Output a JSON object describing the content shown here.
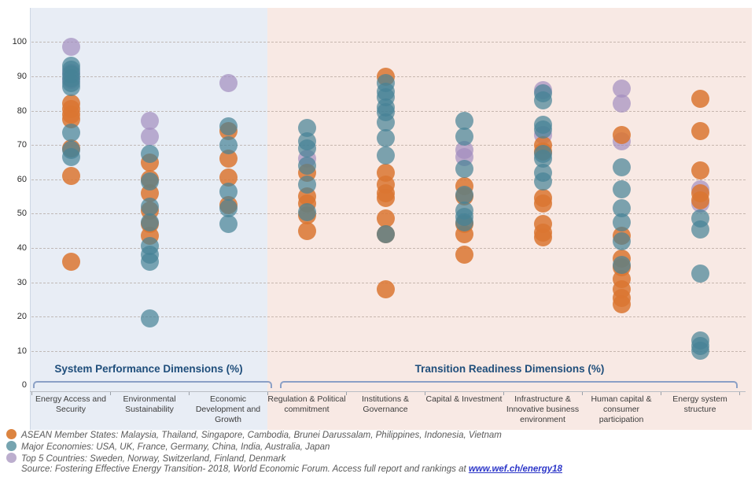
{
  "colors": {
    "panel_blue": "#E8EDF5",
    "panel_pink": "#F8E9E4",
    "region_title": "#1F4E7B",
    "link_blue": "#2B35C8"
  },
  "chart_data": {
    "type": "scatter",
    "title": "",
    "xlabel": "",
    "ylabel": "",
    "ylim": [
      0,
      100
    ],
    "yticks": [
      0,
      10,
      20,
      30,
      40,
      50,
      60,
      70,
      80,
      90,
      100
    ],
    "grid": "dashed horizontal",
    "legend_position": "bottom-left",
    "regions": [
      {
        "label": "System Performance Dimensions (%)",
        "category_span": [
          0,
          2
        ],
        "background": "#E8EDF5"
      },
      {
        "label": "Transition Readiness Dimensions (%)",
        "category_span": [
          3,
          8
        ],
        "background": "#F8E9E4"
      }
    ],
    "categories": [
      "Energy Access and Security",
      "Environmental Sustainability",
      "Economic Development and Growth",
      "Regulation & Political commitment",
      "Institutions & Governance",
      "Capital & Investment",
      "Infrastructure & Innovative business environment",
      "Human capital & consumer participation",
      "Energy system structure"
    ],
    "series": [
      {
        "id": "asean",
        "name": "ASEAN Member States",
        "color": "rgba(219,118,49,0.85)",
        "values_by_category": [
          [
            82,
            80.5,
            79,
            77.5,
            69,
            61,
            36
          ],
          [
            65,
            60,
            56,
            51,
            47,
            43.5
          ],
          [
            74,
            66,
            60.5,
            52.5
          ],
          [
            62,
            55,
            53,
            49.5,
            45
          ],
          [
            90,
            62,
            58.5,
            56,
            54.5,
            48.5,
            44,
            28
          ],
          [
            58,
            55,
            47,
            44,
            38
          ],
          [
            70,
            68,
            54.5,
            53,
            47,
            44.5,
            43
          ],
          [
            73,
            43.5,
            37,
            34.5,
            31,
            28,
            25.5,
            23.5
          ],
          [
            83.5,
            74,
            62.5,
            56,
            54
          ]
        ]
      },
      {
        "id": "major",
        "name": "Major Economies",
        "color": "rgba(70,130,150,0.70)",
        "values_by_category": [
          [
            93,
            92,
            90.5,
            89.5,
            88,
            87,
            73.5,
            68.5,
            66.5
          ],
          [
            67.5,
            59.5,
            52,
            47.5,
            40.5,
            38,
            36,
            19.5
          ],
          [
            75.5,
            70,
            56.5,
            51.5,
            47
          ],
          [
            75,
            71,
            69,
            64,
            58.5,
            50.5
          ],
          [
            88,
            85.5,
            84,
            81,
            79.5,
            76.5,
            72,
            67,
            44
          ],
          [
            77,
            72.5,
            63,
            55.5,
            51,
            49,
            47.5
          ],
          [
            85,
            83,
            76,
            74.5,
            67.5,
            66,
            62,
            59.5
          ],
          [
            63.5,
            57,
            51.5,
            47.5,
            42,
            35
          ],
          [
            48.5,
            45.5,
            32.5,
            13,
            11.5,
            10
          ]
        ]
      },
      {
        "id": "top5",
        "name": "Top 5 Countries",
        "color": "rgba(163,141,191,0.70)",
        "values_by_category": [
          [
            98.5,
            91,
            89
          ],
          [
            77,
            72.5
          ],
          [
            88
          ],
          [
            66
          ],
          [],
          [
            68.5,
            66.5
          ],
          [
            86,
            73
          ],
          [
            86.5,
            82,
            71
          ],
          [
            57,
            53
          ]
        ]
      }
    ]
  },
  "legend": {
    "items": [
      {
        "color": "#DC8440",
        "text": "ASEAN Member States: Malaysia, Thailand, Singapore, Cambodia, Brunei Darussalam, Philippines, Indonesia, Vietnam"
      },
      {
        "color": "#76A4B0",
        "text": "Major Economies: USA, UK, France, Germany, China, India, Australia, Japan"
      },
      {
        "color": "#BCAECE",
        "text": "Top 5 Countries: Sweden, Norway, Switzerland, Finland, Denmark"
      }
    ]
  },
  "source": {
    "prefix": "Source: Fostering Effective Energy Transition- 2018, World Economic Forum. Access full report and rankings at ",
    "link": "www.wef.ch/energy18"
  }
}
